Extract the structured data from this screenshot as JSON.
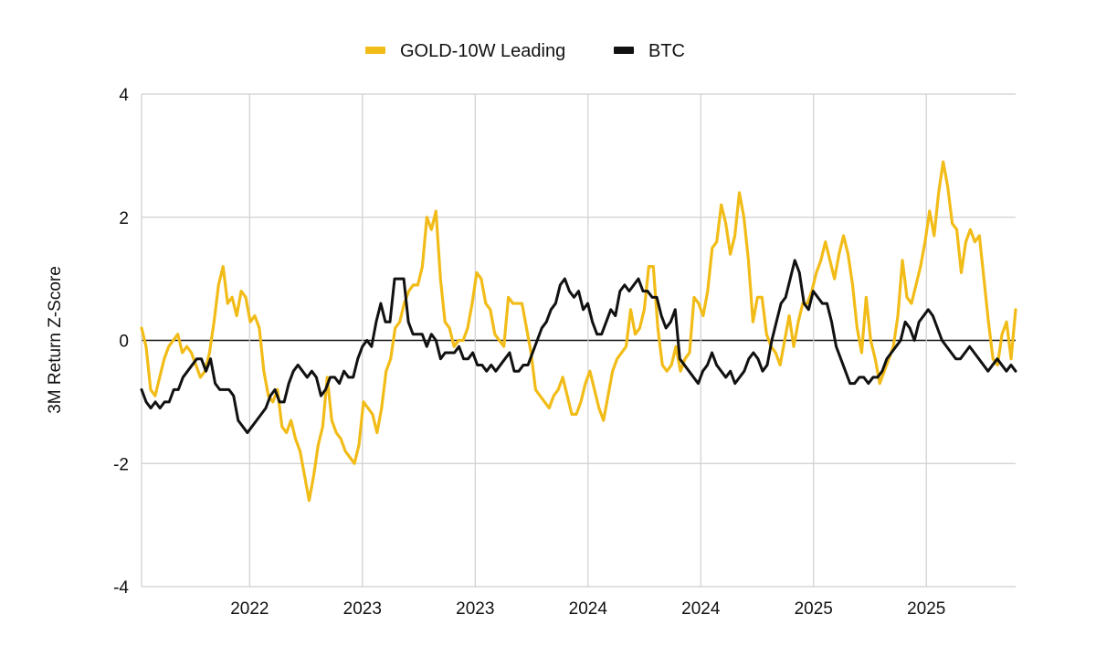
{
  "chart_data": {
    "type": "line",
    "title": "",
    "xlabel": "",
    "ylabel": "3M Return Z-Score",
    "ylim": [
      -4,
      4
    ],
    "yticks": [
      4,
      2,
      0,
      -2,
      -4
    ],
    "ytick_labels": [
      "4",
      "2",
      "0",
      "-2",
      "-4"
    ],
    "xlim": [
      0,
      186
    ],
    "xticks": [
      23,
      47,
      71,
      95,
      119,
      143,
      167
    ],
    "xtick_labels": [
      "2022",
      "2023",
      "2023",
      "2024",
      "2024",
      "2025",
      "2025"
    ],
    "grid": true,
    "legend_position": "top-center",
    "series": [
      {
        "name": "GOLD-10W Leading",
        "color": "#F2BC18",
        "values": [
          0.2,
          -0.1,
          -0.8,
          -0.9,
          -0.6,
          -0.3,
          -0.1,
          0.0,
          0.1,
          -0.2,
          -0.1,
          -0.2,
          -0.4,
          -0.6,
          -0.5,
          -0.2,
          0.3,
          0.9,
          1.2,
          0.6,
          0.7,
          0.4,
          0.8,
          0.7,
          0.3,
          0.4,
          0.2,
          -0.5,
          -0.9,
          -1.0,
          -0.8,
          -1.4,
          -1.5,
          -1.3,
          -1.6,
          -1.8,
          -2.2,
          -2.6,
          -2.2,
          -1.7,
          -1.4,
          -0.6,
          -1.3,
          -1.5,
          -1.6,
          -1.8,
          -1.9,
          -2.0,
          -1.7,
          -1.0,
          -1.1,
          -1.2,
          -1.5,
          -1.1,
          -0.5,
          -0.3,
          0.2,
          0.3,
          0.6,
          0.8,
          0.9,
          0.9,
          1.2,
          2.0,
          1.8,
          2.1,
          1.0,
          0.3,
          0.2,
          -0.1,
          0.0,
          0.0,
          0.2,
          0.6,
          1.1,
          1.0,
          0.6,
          0.5,
          0.1,
          0.0,
          -0.1,
          0.7,
          0.6,
          0.6,
          0.6,
          0.2,
          -0.2,
          -0.8,
          -0.9,
          -1.0,
          -1.1,
          -0.9,
          -0.8,
          -0.6,
          -0.9,
          -1.2,
          -1.2,
          -1.0,
          -0.7,
          -0.5,
          -0.8,
          -1.1,
          -1.3,
          -0.9,
          -0.5,
          -0.3,
          -0.2,
          -0.1,
          0.5,
          0.1,
          0.2,
          0.5,
          1.2,
          1.2,
          0.2,
          -0.4,
          -0.5,
          -0.4,
          -0.1,
          -0.5,
          -0.3,
          -0.2,
          0.7,
          0.6,
          0.4,
          0.8,
          1.5,
          1.6,
          2.2,
          1.9,
          1.4,
          1.7,
          2.4,
          2.0,
          1.3,
          0.3,
          0.7,
          0.7,
          0.1,
          -0.1,
          -0.2,
          -0.4,
          0.0,
          0.4,
          -0.1,
          0.3,
          0.6,
          0.6,
          0.8,
          1.1,
          1.3,
          1.6,
          1.3,
          1.0,
          1.4,
          1.7,
          1.4,
          0.9,
          0.2,
          -0.2,
          0.7,
          0.0,
          -0.3,
          -0.7,
          -0.5,
          -0.3,
          -0.1,
          0.4,
          1.3,
          0.7,
          0.6,
          0.9,
          1.2,
          1.6,
          2.1,
          1.7,
          2.4,
          2.9,
          2.5,
          1.9,
          1.8,
          1.1,
          1.6,
          1.8,
          1.6,
          1.7,
          1.0,
          0.3,
          -0.3,
          -0.4,
          0.1,
          0.3,
          -0.3,
          0.5
        ]
      },
      {
        "name": "BTC",
        "color": "#111111",
        "values": [
          -0.8,
          -1.0,
          -1.1,
          -1.0,
          -1.1,
          -1.0,
          -1.0,
          -0.8,
          -0.8,
          -0.6,
          -0.5,
          -0.4,
          -0.3,
          -0.3,
          -0.5,
          -0.3,
          -0.7,
          -0.8,
          -0.8,
          -0.8,
          -0.9,
          -1.3,
          -1.4,
          -1.5,
          -1.4,
          -1.3,
          -1.2,
          -1.1,
          -0.9,
          -0.8,
          -1.0,
          -1.0,
          -0.7,
          -0.5,
          -0.4,
          -0.5,
          -0.6,
          -0.5,
          -0.6,
          -0.9,
          -0.8,
          -0.6,
          -0.6,
          -0.7,
          -0.5,
          -0.6,
          -0.6,
          -0.3,
          -0.1,
          0.0,
          -0.1,
          0.3,
          0.6,
          0.3,
          0.3,
          1.0,
          1.0,
          1.0,
          0.3,
          0.1,
          0.1,
          0.1,
          -0.1,
          0.1,
          0.0,
          -0.3,
          -0.2,
          -0.2,
          -0.2,
          -0.1,
          -0.3,
          -0.3,
          -0.2,
          -0.4,
          -0.4,
          -0.5,
          -0.4,
          -0.5,
          -0.4,
          -0.3,
          -0.2,
          -0.5,
          -0.5,
          -0.4,
          -0.4,
          -0.2,
          0.0,
          0.2,
          0.3,
          0.5,
          0.6,
          0.9,
          1.0,
          0.8,
          0.7,
          0.8,
          0.5,
          0.6,
          0.3,
          0.1,
          0.1,
          0.3,
          0.5,
          0.4,
          0.8,
          0.9,
          0.8,
          0.9,
          1.0,
          0.8,
          0.8,
          0.7,
          0.7,
          0.4,
          0.2,
          0.3,
          0.5,
          -0.3,
          -0.4,
          -0.5,
          -0.6,
          -0.7,
          -0.5,
          -0.4,
          -0.2,
          -0.4,
          -0.5,
          -0.6,
          -0.5,
          -0.7,
          -0.6,
          -0.5,
          -0.3,
          -0.2,
          -0.3,
          -0.5,
          -0.4,
          0.0,
          0.3,
          0.6,
          0.7,
          1.0,
          1.3,
          1.1,
          0.6,
          0.5,
          0.8,
          0.7,
          0.6,
          0.6,
          0.3,
          -0.1,
          -0.3,
          -0.5,
          -0.7,
          -0.7,
          -0.6,
          -0.6,
          -0.7,
          -0.6,
          -0.6,
          -0.5,
          -0.3,
          -0.2,
          -0.1,
          0.0,
          0.3,
          0.2,
          0.0,
          0.3,
          0.4,
          0.5,
          0.4,
          0.2,
          0.0,
          -0.1,
          -0.2,
          -0.3,
          -0.3,
          -0.2,
          -0.1,
          -0.2,
          -0.3,
          -0.4,
          -0.5,
          -0.4,
          -0.3,
          -0.4,
          -0.5,
          -0.4,
          -0.5
        ]
      }
    ]
  }
}
